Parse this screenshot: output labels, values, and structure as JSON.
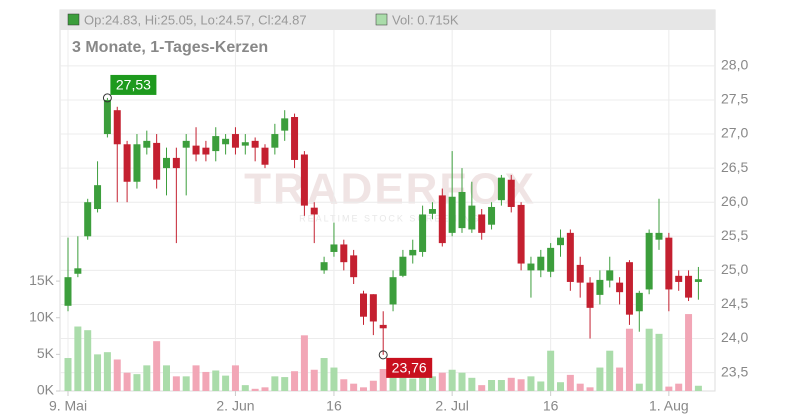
{
  "chart_data": {
    "type": "candlestick",
    "title": "3 Monate, 1-Tages-Kerzen",
    "header": {
      "ohlc": "Op:24.83, Hi:25.05, Lo:24.57, Cl:24.87",
      "volume": "Vol: 0.715K"
    },
    "watermark": "TRADERFOX",
    "watermark_sub": "REALTIME STOCK SCREENING",
    "categories": [
      "9. Mai",
      null,
      null,
      null,
      null,
      null,
      null,
      null,
      null,
      null,
      null,
      null,
      null,
      null,
      null,
      null,
      null,
      "2. Jun",
      null,
      null,
      null,
      null,
      null,
      null,
      null,
      null,
      null,
      "16",
      null,
      null,
      null,
      null,
      null,
      null,
      null,
      null,
      null,
      null,
      null,
      "2. Jul",
      null,
      null,
      null,
      null,
      null,
      null,
      null,
      null,
      null,
      "16",
      null,
      null,
      null,
      null,
      null,
      null,
      null,
      null,
      null,
      null,
      null,
      "1. Aug",
      null,
      null,
      null
    ],
    "open": [
      24.48,
      24.95,
      25.5,
      25.9,
      27.0,
      27.35,
      26.85,
      26.3,
      26.8,
      26.87,
      26.5,
      26.65,
      26.8,
      26.83,
      26.8,
      26.75,
      26.85,
      27.0,
      26.83,
      26.9,
      26.8,
      26.8,
      27.05,
      27.25,
      26.7,
      25.92,
      25.0,
      25.27,
      25.38,
      25.22,
      24.66,
      24.65,
      24.2,
      24.5,
      24.92,
      25.22,
      25.27,
      25.83,
      26.1,
      25.55,
      25.62,
      25.6,
      25.82,
      25.67,
      26.03,
      26.33,
      25.96,
      25.0,
      25.0,
      24.98,
      25.37,
      25.55,
      25.08,
      24.82,
      24.64,
      24.85,
      24.82,
      25.12,
      24.4,
      24.72,
      25.45,
      25.48,
      24.92,
      24.92,
      24.83
    ],
    "high": [
      25.48,
      25.5,
      26.05,
      26.6,
      27.53,
      27.4,
      26.9,
      27.0,
      27.05,
      27.0,
      26.8,
      26.8,
      27.0,
      27.1,
      26.9,
      27.1,
      27.0,
      27.1,
      27.0,
      26.95,
      26.85,
      27.15,
      27.35,
      27.3,
      26.75,
      26.0,
      25.2,
      25.7,
      25.45,
      25.3,
      24.7,
      24.65,
      24.4,
      25.0,
      25.3,
      25.45,
      25.95,
      26.0,
      26.2,
      26.75,
      26.5,
      26.3,
      25.9,
      26.0,
      26.4,
      26.4,
      26.0,
      25.2,
      25.3,
      25.4,
      25.6,
      25.6,
      25.2,
      24.9,
      25.0,
      25.2,
      24.9,
      25.15,
      24.7,
      25.6,
      26.05,
      25.55,
      25.0,
      25.0,
      25.05
    ],
    "low": [
      24.4,
      24.9,
      25.45,
      25.85,
      26.95,
      26.0,
      26.0,
      26.2,
      26.7,
      26.2,
      26.1,
      25.4,
      26.1,
      26.6,
      26.6,
      26.6,
      26.7,
      26.7,
      26.7,
      26.6,
      26.5,
      26.7,
      26.9,
      26.5,
      25.8,
      25.4,
      24.95,
      25.2,
      25.0,
      24.8,
      24.2,
      24.05,
      23.76,
      24.4,
      24.9,
      25.1,
      25.2,
      25.75,
      25.35,
      25.5,
      25.55,
      25.55,
      25.45,
      25.6,
      25.95,
      25.85,
      25.0,
      24.6,
      24.9,
      24.9,
      25.2,
      24.7,
      24.6,
      24.0,
      24.5,
      24.75,
      24.5,
      24.2,
      24.1,
      24.65,
      25.3,
      24.4,
      24.7,
      24.55,
      24.57
    ],
    "close": [
      24.9,
      25.03,
      26.0,
      26.25,
      27.5,
      26.85,
      26.3,
      26.85,
      26.9,
      26.33,
      26.65,
      26.5,
      26.9,
      26.7,
      26.7,
      26.97,
      26.93,
      26.8,
      26.88,
      26.8,
      26.55,
      27.0,
      27.23,
      26.62,
      25.95,
      25.82,
      25.12,
      25.38,
      25.12,
      24.9,
      24.32,
      24.25,
      24.15,
      24.9,
      25.2,
      25.3,
      25.82,
      25.9,
      25.4,
      26.08,
      26.15,
      25.95,
      25.55,
      25.93,
      26.36,
      25.93,
      25.1,
      25.1,
      25.2,
      25.33,
      25.48,
      24.83,
      24.82,
      24.45,
      24.86,
      25.0,
      24.68,
      24.35,
      24.67,
      25.55,
      25.55,
      24.72,
      24.83,
      24.6,
      24.87
    ],
    "volume": [
      4.5,
      8.8,
      8.3,
      5.0,
      5.3,
      4.3,
      2.5,
      2.3,
      3.5,
      6.8,
      3.5,
      2.0,
      2.0,
      3.5,
      2.6,
      2.8,
      2.1,
      3.5,
      0.8,
      0.3,
      0.5,
      2.0,
      1.9,
      2.7,
      7.6,
      2.9,
      4.5,
      3.2,
      1.6,
      1.0,
      0.5,
      1.4,
      3.0,
      2.0,
      2.0,
      1.7,
      2.3,
      2.0,
      2.5,
      2.9,
      2.5,
      1.8,
      0.8,
      1.5,
      1.5,
      1.8,
      1.6,
      2.0,
      1.3,
      5.5,
      1.2,
      2.2,
      1.0,
      0.5,
      3.2,
      5.5,
      3.2,
      8.5,
      1.0,
      8.5,
      7.8,
      0.6,
      1.0,
      10.5,
      0.715
    ],
    "up_color": "#3c9e3c",
    "down_color": "#c42030",
    "vol_up_color": "#aadcaa",
    "vol_down_color": "#f2a6b6",
    "ylim": [
      23.23,
      28.82
    ],
    "yticks": [
      {
        "value": 23.5,
        "label": "23,5"
      },
      {
        "value": 24,
        "label": "24,0"
      },
      {
        "value": 24.5,
        "label": "24,5"
      },
      {
        "value": 25,
        "label": "25,0"
      },
      {
        "value": 25.5,
        "label": "25,5"
      },
      {
        "value": 26,
        "label": "26,0"
      },
      {
        "value": 26.5,
        "label": "26,5"
      },
      {
        "value": 27,
        "label": "27,0"
      },
      {
        "value": 27.5,
        "label": "27,5"
      },
      {
        "value": 28,
        "label": "28,0"
      }
    ],
    "y2lim": [
      0,
      52
    ],
    "y2ticks": [
      {
        "value": 0,
        "label": "0K"
      },
      {
        "value": 5,
        "label": "5K"
      },
      {
        "value": 10,
        "label": "10K"
      },
      {
        "value": 15,
        "label": "15K"
      }
    ],
    "annotations": [
      {
        "index": 4,
        "label": "27,53"
      },
      {
        "index": 32,
        "label": "23,76"
      }
    ],
    "grid": true
  }
}
